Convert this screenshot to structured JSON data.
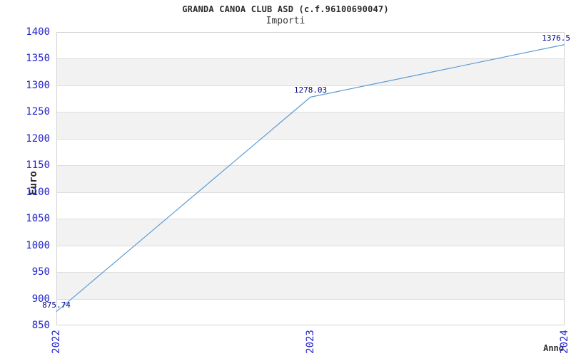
{
  "chart_data": {
    "type": "line",
    "title": "GRANDA CANOA CLUB ASD (c.f.96100690047)",
    "subtitle": "Importi",
    "xlabel": "Anno",
    "ylabel": "Euro",
    "categories": [
      "2022",
      "2023",
      "2024"
    ],
    "series": [
      {
        "name": "Importi",
        "values": [
          875.74,
          1278.03,
          1376.5
        ],
        "color": "#5b9bd5"
      }
    ],
    "point_labels": [
      "875.74",
      "1278.03",
      "1376.5"
    ],
    "ylim": [
      850,
      1400
    ],
    "ytick_step": 50,
    "grid": "horizontal-gridlines-with-alternating-bands",
    "legend": "none",
    "colors": {
      "tick_label": "#2222cc",
      "point_label": "#00008b",
      "title": "#2d2d2d",
      "axis_title": "#2d2d2d",
      "band_gray": "#f2f2f2",
      "band_white": "#ffffff",
      "gridline": "#dedede",
      "plot_border": "#d4d4d4",
      "background": "#ffffff"
    }
  }
}
